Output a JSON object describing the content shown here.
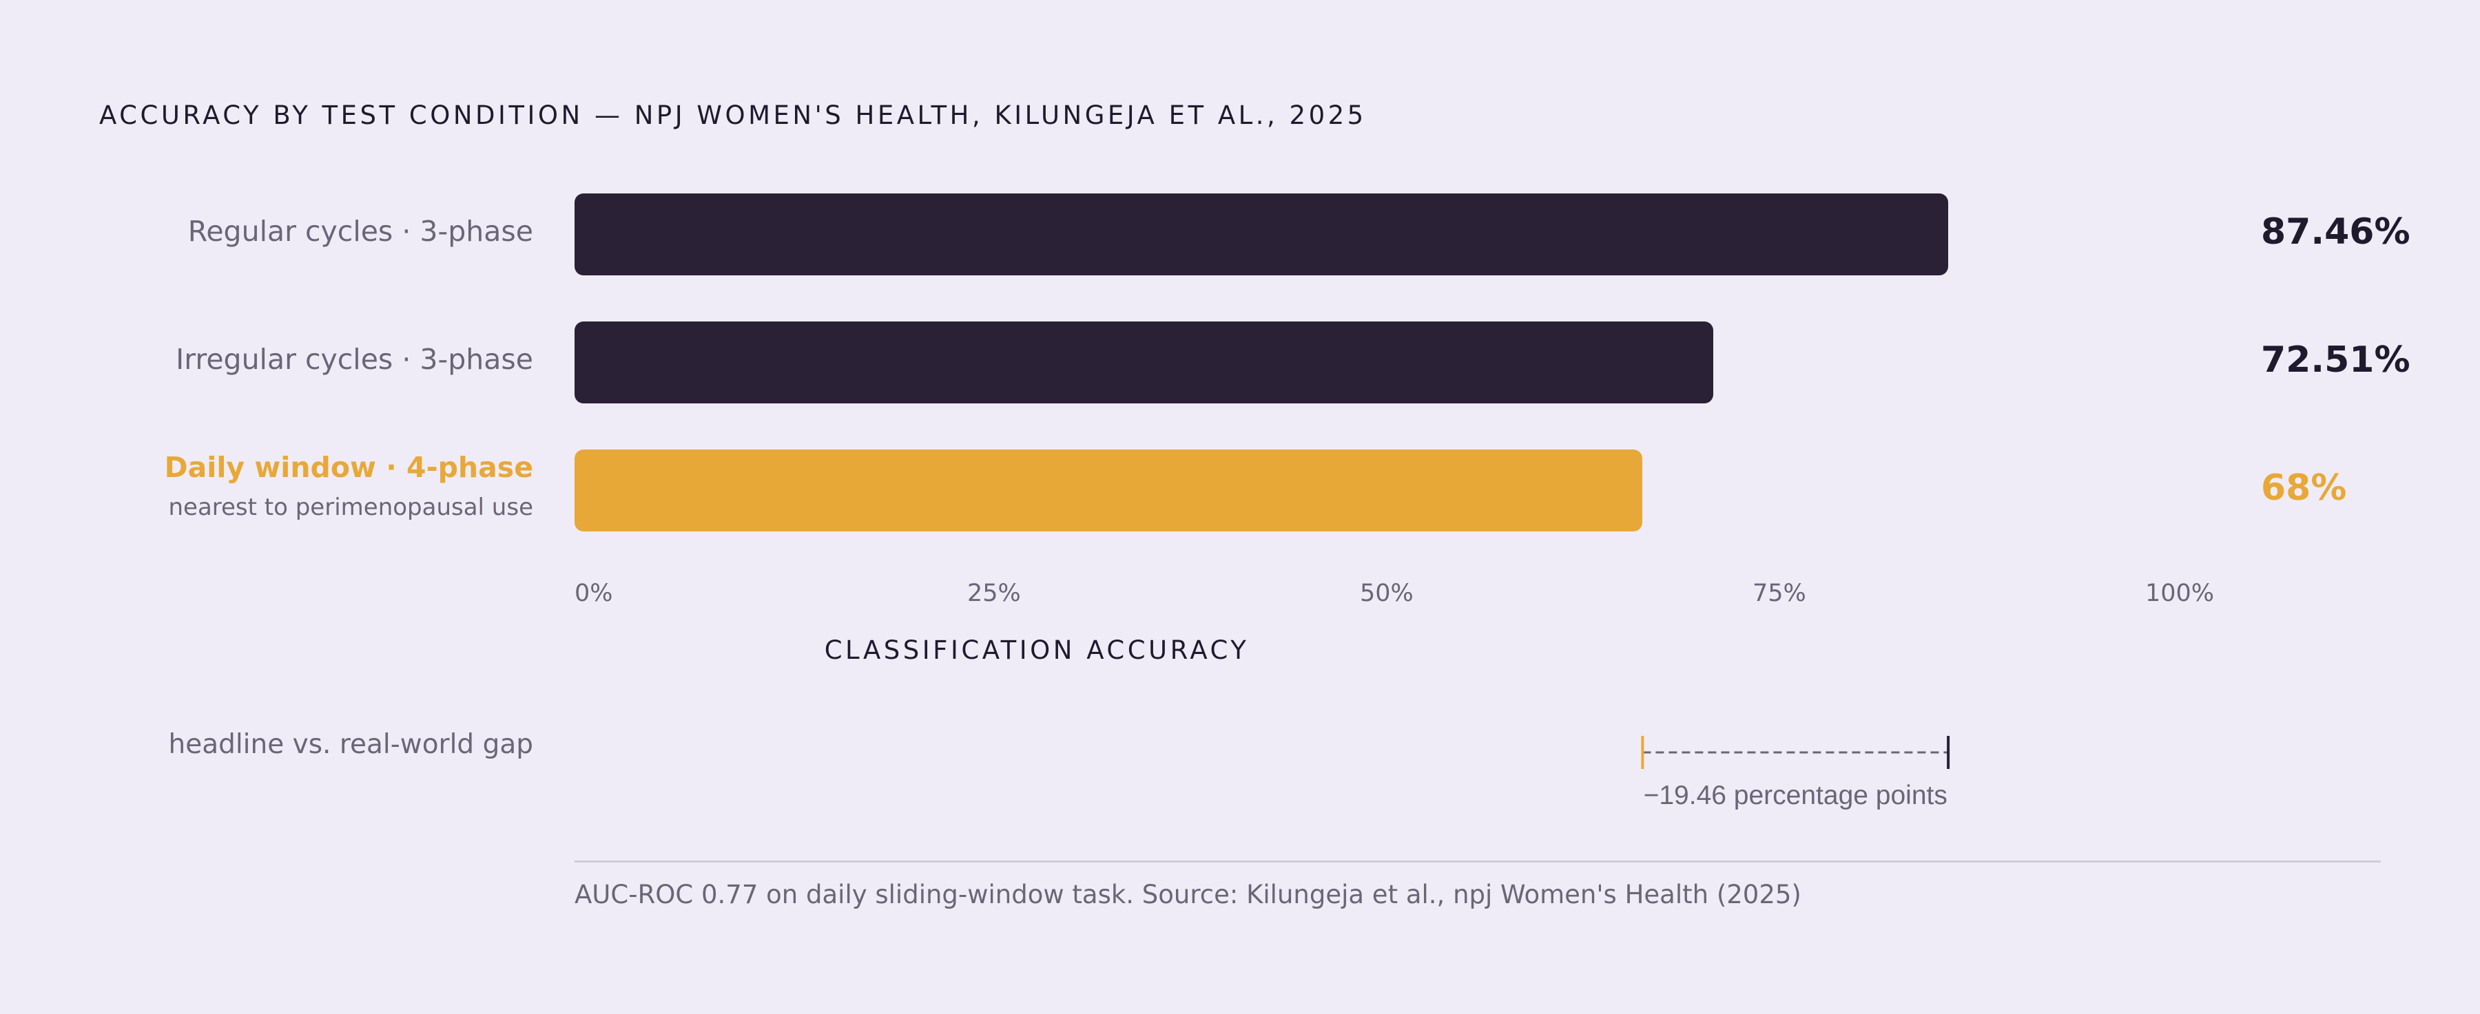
{
  "chart_data": {
    "type": "bar",
    "orientation": "horizontal",
    "title": "ACCURACY BY TEST CONDITION — NPJ WOMEN'S HEALTH, KILUNGEJA ET AL., 2025",
    "xlabel": "CLASSIFICATION ACCURACY",
    "xlim": [
      0,
      100
    ],
    "ticks": [
      "0%",
      "25%",
      "50%",
      "75%",
      "100%"
    ],
    "tick_values": [
      0,
      25,
      50,
      75,
      100
    ],
    "categories": [
      {
        "label": "Regular cycles · 3-phase",
        "sublabel": "",
        "value": 87.46,
        "value_label": "87.46%",
        "highlight": false
      },
      {
        "label": "Irregular cycles · 3-phase",
        "sublabel": "",
        "value": 72.51,
        "value_label": "72.51%",
        "highlight": false
      },
      {
        "label": "Daily window · 4-phase",
        "sublabel": "nearest to perimenopausal use",
        "value": 68,
        "value_label": "68%",
        "highlight": true
      }
    ],
    "annotation": {
      "label": "headline vs. real-world gap",
      "from": 68,
      "to": 87.46,
      "text": "−19.46 percentage points"
    },
    "colors": {
      "default_bar": "#2a2136",
      "highlight_bar": "#e8a838",
      "background": "#efecf7"
    },
    "grid": false,
    "legend": "none"
  },
  "footnote": "AUC-ROC 0.77 on daily sliding-window task. Source: Kilungeja et al., npj Women's Health (2025)"
}
